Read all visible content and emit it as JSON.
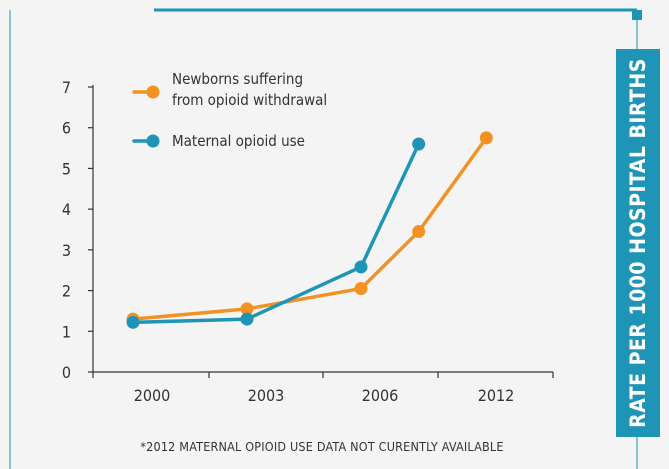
{
  "colors": {
    "newborns": "#f29222",
    "maternal": "#1e95b6",
    "axis": "#333333",
    "frame": "#1e95b6",
    "background": "#f4f4f4"
  },
  "chart_data": {
    "type": "line",
    "x": [
      "2000",
      "2003",
      "2006",
      "2012"
    ],
    "ylim": [
      0,
      7
    ],
    "yticks": [
      "0",
      "1",
      "2",
      "3",
      "4",
      "5",
      "6",
      "7"
    ],
    "ylabel": "RATE PER 1000 HOSPITAL BIRTHS",
    "grid": false,
    "legend_position": "top-left",
    "footnote": "*2012 MATERNAL OPIOID USE DATA NOT CURENTLY AVAILABLE",
    "series": [
      {
        "name_lines": [
          "Newborns suffering",
          "from opioid withdrawal"
        ],
        "color": "#f29222",
        "points": [
          {
            "x": 1999.5,
            "y": 1.3
          },
          {
            "x": 2002.5,
            "y": 1.55
          },
          {
            "x": 2005.5,
            "y": 2.05
          },
          {
            "x": 2008.0,
            "y": 3.45
          },
          {
            "x": 2011.5,
            "y": 5.75
          }
        ]
      },
      {
        "name_lines": [
          "Maternal opioid use"
        ],
        "color": "#1e95b6",
        "points": [
          {
            "x": 1999.5,
            "y": 1.22
          },
          {
            "x": 2002.5,
            "y": 1.3
          },
          {
            "x": 2005.5,
            "y": 2.58
          },
          {
            "x": 2008.0,
            "y": 5.6
          }
        ]
      }
    ]
  }
}
